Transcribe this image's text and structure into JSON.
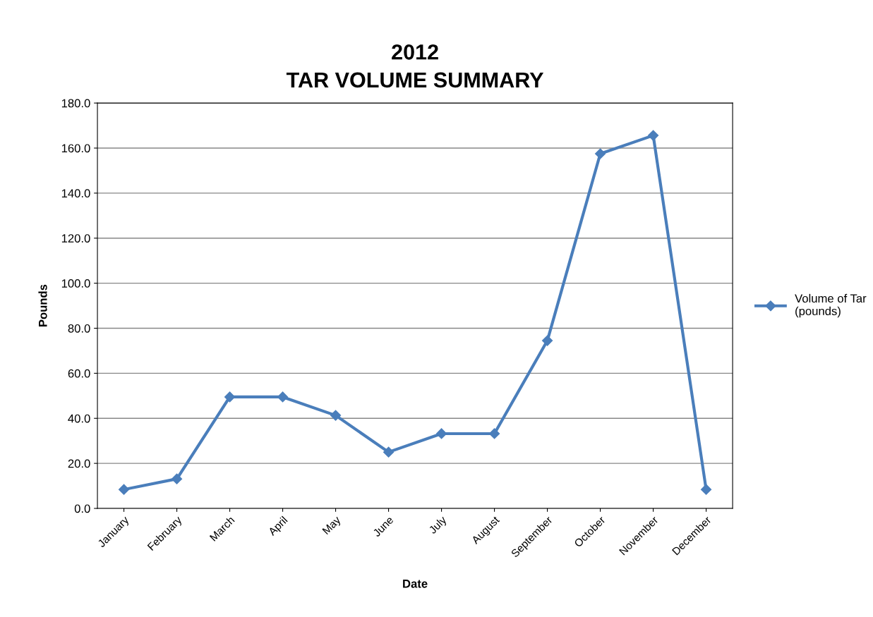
{
  "chart_data": {
    "type": "line",
    "title": "2012\nTAR VOLUME SUMMARY",
    "xlabel": "Date",
    "ylabel": "Pounds",
    "categories": [
      "January",
      "February",
      "March",
      "April",
      "May",
      "June",
      "July",
      "August",
      "September",
      "October",
      "November",
      "December"
    ],
    "series": [
      {
        "name": "Volume of Tar\n(pounds)",
        "color": "#4a7ebb",
        "values": [
          8.4,
          13.1,
          49.5,
          49.5,
          41.3,
          25.0,
          33.2,
          33.2,
          74.5,
          157.5,
          165.6,
          8.4
        ]
      }
    ],
    "ylim": [
      0,
      180
    ],
    "yticks": [
      {
        "value": 0,
        "label": "0.0"
      },
      {
        "value": 20,
        "label": "20.0"
      },
      {
        "value": 40,
        "label": "40.0"
      },
      {
        "value": 60,
        "label": "60.0"
      },
      {
        "value": 80,
        "label": "80.0"
      },
      {
        "value": 100,
        "label": "100.0"
      },
      {
        "value": 120,
        "label": "120.0"
      },
      {
        "value": 140,
        "label": "140.0"
      },
      {
        "value": 160,
        "label": "160.0"
      },
      {
        "value": 180,
        "label": "180.0"
      }
    ],
    "grid": "y",
    "legend": "right",
    "marker": "diamond",
    "line_style": "solid"
  }
}
